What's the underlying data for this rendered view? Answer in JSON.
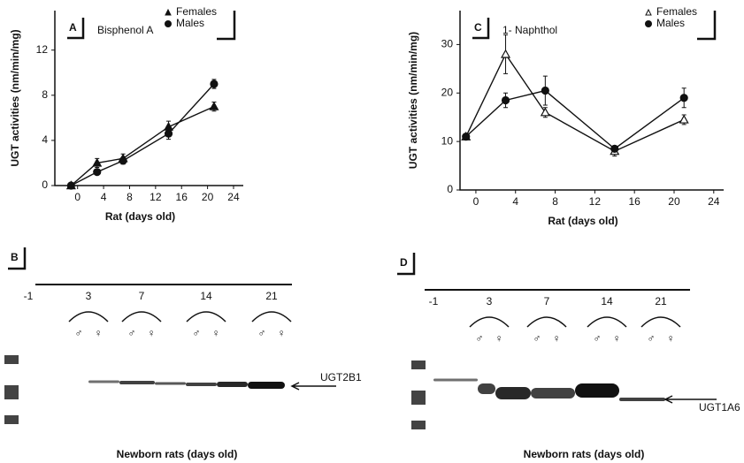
{
  "chart_data": [
    {
      "type": "line",
      "panel": "A",
      "subtitle": "Bisphenol A",
      "y_label": "UGT activities (nm/min/mg)",
      "x_label": "Rat (days old)",
      "x": [
        -1,
        3,
        7,
        14,
        21
      ],
      "series": [
        {
          "name": "Females",
          "marker": "triangle",
          "color": "#111",
          "values": [
            0,
            2.0,
            2.4,
            5.2,
            7.0
          ],
          "errors": [
            0.1,
            0.4,
            0.4,
            0.5,
            0.4
          ]
        },
        {
          "name": "Males",
          "marker": "circle",
          "color": "#111",
          "values": [
            0,
            1.2,
            2.2,
            4.6,
            9.0
          ],
          "errors": [
            0.1,
            0.2,
            0.3,
            0.5,
            0.4
          ]
        }
      ],
      "xlim": [
        -3.5,
        25.5
      ],
      "xticks": [
        0,
        4,
        8,
        12,
        16,
        20,
        24
      ],
      "ylim": [
        0,
        15.5
      ],
      "yticks": [
        0,
        4,
        8,
        12
      ]
    },
    {
      "type": "line",
      "panel": "C",
      "subtitle": "1- Naphthol",
      "y_label": "UGT activities (nm/min/mg)",
      "x_label": "Rat (days old)",
      "x": [
        -1,
        3,
        7,
        14,
        21
      ],
      "series": [
        {
          "name": "Females",
          "marker": "triangle-open",
          "color": "#111",
          "values": [
            11,
            28,
            16,
            8,
            14.5
          ],
          "errors": [
            0.5,
            4,
            1,
            1,
            1
          ]
        },
        {
          "name": "Males",
          "marker": "circle",
          "color": "#111",
          "values": [
            11,
            18.5,
            20.5,
            8.5,
            19
          ],
          "errors": [
            0.5,
            1.5,
            3,
            0.5,
            2
          ]
        }
      ],
      "xlim": [
        -1.6,
        25
      ],
      "xticks": [
        0,
        4,
        8,
        12,
        16,
        20,
        24
      ],
      "ylim": [
        0,
        37
      ],
      "yticks": [
        0,
        10,
        20,
        30
      ]
    }
  ],
  "blots": [
    {
      "panel": "B",
      "lanes": [
        "-1",
        "3",
        "7",
        "14",
        "21"
      ],
      "sexes": [
        "♂",
        "♀"
      ],
      "band_label": "UGT2B1",
      "x_label": "Newborn rats (days old)"
    },
    {
      "panel": "D",
      "lanes": [
        "-1",
        "3",
        "7",
        "14",
        "21"
      ],
      "sexes": [
        "♂",
        "♀"
      ],
      "band_label": "UGT1A6",
      "x_label": "Newborn rats (days old)"
    }
  ]
}
